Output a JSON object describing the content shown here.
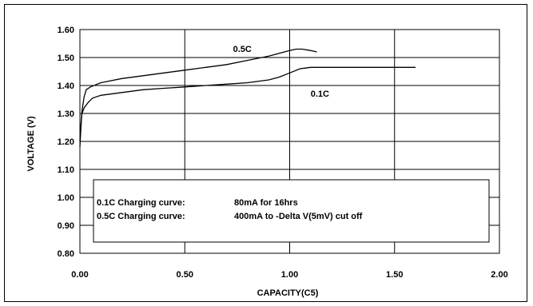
{
  "chart_data": {
    "type": "line",
    "title": "",
    "xlabel": "CAPACITY(C5)",
    "ylabel": "VOLTAGE (V)",
    "xlim": [
      0.0,
      2.0
    ],
    "ylim": [
      0.8,
      1.6
    ],
    "x_ticks": [
      "0.00",
      "0.50",
      "1.00",
      "1.50",
      "2.00"
    ],
    "y_ticks": [
      "0.80",
      "0.90",
      "1.00",
      "1.10",
      "1.20",
      "1.30",
      "1.40",
      "1.50",
      "1.60"
    ],
    "grid": true,
    "series": [
      {
        "name": "0.5C",
        "color": "#000000",
        "x": [
          0.0,
          0.005,
          0.01,
          0.02,
          0.03,
          0.05,
          0.1,
          0.2,
          0.3,
          0.4,
          0.5,
          0.6,
          0.7,
          0.8,
          0.9,
          0.95,
          1.0,
          1.03,
          1.06,
          1.1,
          1.13
        ],
        "y": [
          1.18,
          1.25,
          1.31,
          1.36,
          1.385,
          1.395,
          1.41,
          1.425,
          1.435,
          1.445,
          1.455,
          1.465,
          1.475,
          1.49,
          1.505,
          1.515,
          1.525,
          1.53,
          1.53,
          1.525,
          1.52
        ]
      },
      {
        "name": "0.1C",
        "color": "#000000",
        "x": [
          0.0,
          0.005,
          0.01,
          0.02,
          0.04,
          0.06,
          0.1,
          0.2,
          0.3,
          0.4,
          0.5,
          0.6,
          0.7,
          0.8,
          0.9,
          0.95,
          1.0,
          1.05,
          1.1,
          1.2,
          1.3,
          1.4,
          1.5,
          1.6
        ],
        "y": [
          1.2,
          1.26,
          1.3,
          1.32,
          1.34,
          1.355,
          1.365,
          1.375,
          1.385,
          1.39,
          1.395,
          1.4,
          1.405,
          1.41,
          1.42,
          1.43,
          1.445,
          1.46,
          1.465,
          1.465,
          1.465,
          1.465,
          1.465,
          1.465
        ]
      }
    ],
    "series_labels": [
      {
        "text": "0.5C",
        "x": 0.73,
        "y": 1.52
      },
      {
        "text": "0.1C",
        "x": 1.1,
        "y": 1.36
      }
    ],
    "annotation": {
      "lines": [
        {
          "name": "0.1C Charging curve:",
          "value": "80mA for 16hrs"
        },
        {
          "name": "0.5C Charging curve:",
          "value": "400mA to -Delta V(5mV) cut off"
        }
      ]
    }
  }
}
